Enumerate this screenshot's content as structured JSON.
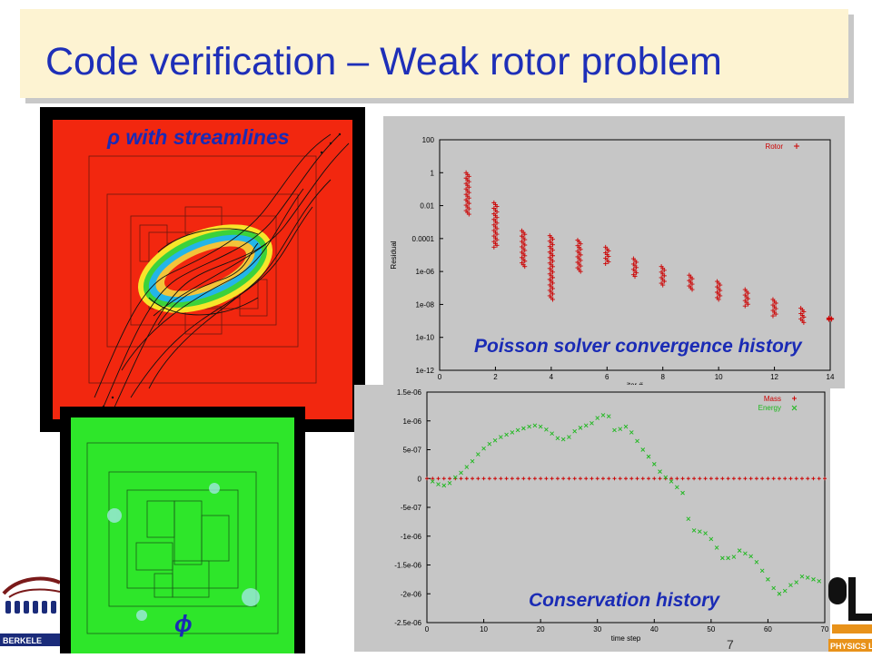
{
  "slide": {
    "title": "Code verification – Weak rotor problem",
    "page_number": "7"
  },
  "panels": {
    "density": {
      "label": "ρ with streamlines",
      "icon": "streamline-density-plot"
    },
    "potential": {
      "label": "ϕ",
      "icon": "potential-field-plot"
    }
  },
  "colors": {
    "title_bg": "#fdf3d2",
    "title_text": "#1e2fb8",
    "label_text": "#1a2bb5",
    "density_field": "#f2270f",
    "potential_field": "#2ee62a",
    "residual_marker": "#cc0000",
    "mass_marker": "#cc0000",
    "energy_marker": "#1db81d",
    "chart_bg": "#c6c6c6"
  },
  "chart_data": [
    {
      "type": "scatter",
      "caption": "Poisson solver convergence history",
      "xlabel": "iter #",
      "ylabel": "Residual",
      "xlim": [
        0,
        14
      ],
      "ylim": [
        1e-12,
        100
      ],
      "log_y": true,
      "x_ticks": [
        "0",
        "2",
        "4",
        "6",
        "8",
        "10",
        "12",
        "14"
      ],
      "y_ticks": [
        "100",
        "1",
        "0.01",
        "0.0001",
        "1e-06",
        "1e-08",
        "1e-10",
        "1e-12"
      ],
      "grid": false,
      "legend_position": "top-right",
      "series": [
        {
          "name": "Rotor",
          "points": [
            {
              "x": 1,
              "hi": 1.0,
              "lo": 0.003
            },
            {
              "x": 2,
              "hi": 0.015,
              "lo": 3e-05
            },
            {
              "x": 3,
              "hi": 0.0003,
              "lo": 2e-06
            },
            {
              "x": 4,
              "hi": 0.00015,
              "lo": 2e-08
            },
            {
              "x": 5,
              "hi": 8e-05,
              "lo": 1e-06
            },
            {
              "x": 6,
              "hi": 3e-05,
              "lo": 3e-06
            },
            {
              "x": 7,
              "hi": 6e-06,
              "lo": 5e-07
            },
            {
              "x": 8,
              "hi": 2e-06,
              "lo": 1.5e-07
            },
            {
              "x": 9,
              "hi": 6e-07,
              "lo": 8e-08
            },
            {
              "x": 10,
              "hi": 2.5e-07,
              "lo": 2e-08
            },
            {
              "x": 11,
              "hi": 8e-08,
              "lo": 8e-09
            },
            {
              "x": 12,
              "hi": 2e-08,
              "lo": 2e-09
            },
            {
              "x": 13,
              "hi": 6e-09,
              "lo": 8e-10
            },
            {
              "x": 14,
              "hi": 1.5e-09,
              "lo": 1.2e-09
            }
          ]
        }
      ]
    },
    {
      "type": "scatter",
      "caption": "Conservation history",
      "xlabel": "time step",
      "ylabel": "",
      "xlim": [
        0,
        70
      ],
      "ylim": [
        -2.5e-06,
        1.5e-06
      ],
      "x_ticks": [
        "0",
        "10",
        "20",
        "30",
        "40",
        "50",
        "60",
        "70"
      ],
      "y_ticks": [
        "1.5e-06",
        "1e-06",
        "5e-07",
        "0",
        "-5e-07",
        "-1e-06",
        "-1.5e-06",
        "-2e-06",
        "-2.5e-06"
      ],
      "grid": false,
      "legend_position": "top-right",
      "series": [
        {
          "name": "Mass",
          "marker": "+",
          "x": [
            0,
            1,
            2,
            3,
            4,
            5,
            6,
            7,
            8,
            9,
            10,
            11,
            12,
            13,
            14,
            15,
            16,
            17,
            18,
            19,
            20,
            21,
            22,
            23,
            24,
            25,
            26,
            27,
            28,
            29,
            30,
            31,
            32,
            33,
            34,
            35,
            36,
            37,
            38,
            39,
            40,
            41,
            42,
            43,
            44,
            45,
            46,
            47,
            48,
            49,
            50,
            51,
            52,
            53,
            54,
            55,
            56,
            57,
            58,
            59,
            60,
            61,
            62,
            63,
            64,
            65,
            66,
            67,
            68,
            69,
            70
          ],
          "y": [
            0,
            0,
            0,
            0,
            0,
            0,
            0,
            0,
            0,
            0,
            0,
            0,
            0,
            0,
            0,
            0,
            0,
            0,
            0,
            0,
            0,
            0,
            0,
            0,
            0,
            0,
            0,
            0,
            0,
            0,
            0,
            0,
            0,
            0,
            0,
            0,
            0,
            0,
            0,
            0,
            0,
            0,
            0,
            0,
            0,
            0,
            0,
            0,
            0,
            0,
            0,
            0,
            0,
            0,
            0,
            0,
            0,
            0,
            0,
            0,
            0,
            0,
            0,
            0,
            0,
            0,
            0,
            0,
            0,
            0,
            0
          ]
        },
        {
          "name": "Energy",
          "marker": "x",
          "x": [
            1,
            2,
            3,
            4,
            5,
            6,
            7,
            8,
            9,
            10,
            11,
            12,
            13,
            14,
            15,
            16,
            17,
            18,
            19,
            20,
            21,
            22,
            23,
            24,
            25,
            26,
            27,
            28,
            29,
            30,
            31,
            32,
            33,
            34,
            35,
            36,
            37,
            38,
            39,
            40,
            41,
            42,
            43,
            44,
            45,
            46,
            47,
            48,
            49,
            50,
            51,
            52,
            53,
            54,
            55,
            56,
            57,
            58,
            59,
            60,
            61,
            62,
            63,
            64,
            65,
            66,
            67,
            68,
            69
          ],
          "y": [
            -5e-08,
            -1e-07,
            -1.2e-07,
            -8e-08,
            2e-08,
            1e-07,
            2e-07,
            3e-07,
            4.2e-07,
            5.2e-07,
            6e-07,
            6.6e-07,
            7.2e-07,
            7.6e-07,
            8e-07,
            8.4e-07,
            8.7e-07,
            9e-07,
            9.2e-07,
            9e-07,
            8.5e-07,
            7.8e-07,
            7e-07,
            6.8e-07,
            7.2e-07,
            8.2e-07,
            8.8e-07,
            9.2e-07,
            9.6e-07,
            1.05e-06,
            1.1e-06,
            1.08e-06,
            8.4e-07,
            8.6e-07,
            9e-07,
            8e-07,
            6.5e-07,
            5e-07,
            3.8e-07,
            2.5e-07,
            1.2e-07,
            2e-08,
            -5e-08,
            -1.5e-07,
            -2.5e-07,
            -7e-07,
            -9e-07,
            -9.2e-07,
            -9.5e-07,
            -1.05e-06,
            -1.2e-06,
            -1.38e-06,
            -1.38e-06,
            -1.36e-06,
            -1.25e-06,
            -1.3e-06,
            -1.35e-06,
            -1.45e-06,
            -1.6e-06,
            -1.75e-06,
            -1.9e-06,
            -2e-06,
            -1.95e-06,
            -1.85e-06,
            -1.8e-06,
            -1.7e-06,
            -1.72e-06,
            -1.75e-06,
            -1.78e-06
          ]
        }
      ]
    }
  ]
}
